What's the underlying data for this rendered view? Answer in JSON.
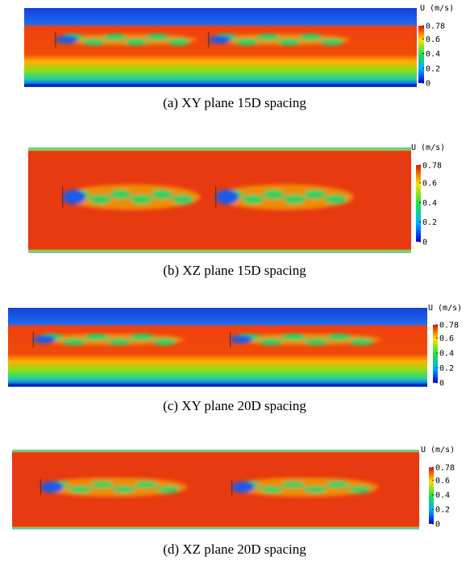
{
  "panels": [
    {
      "caption": "(a) XY plane 15D spacing",
      "colorbar": {
        "title": "U (m/s)",
        "lim": [
          0,
          0.78
        ],
        "ticks": [
          0,
          0.2,
          0.4,
          0.6,
          0.78
        ]
      }
    },
    {
      "caption": "(b) XZ plane 15D spacing",
      "colorbar": {
        "title": "U (m/s)",
        "lim": [
          0,
          0.78
        ],
        "ticks": [
          0,
          0.2,
          0.4,
          0.6,
          0.78
        ]
      }
    },
    {
      "caption": "(c) XY plane 20D spacing",
      "colorbar": {
        "title": "U (m/s)",
        "lim": [
          0,
          0.78
        ],
        "ticks": [
          0,
          0.2,
          0.4,
          0.6,
          0.78
        ]
      }
    },
    {
      "caption": "(d) XZ plane 20D spacing",
      "colorbar": {
        "title": "U (m/s)",
        "lim": [
          0,
          0.78
        ],
        "ticks": [
          0,
          0.2,
          0.4,
          0.6,
          0.78
        ]
      }
    }
  ]
}
